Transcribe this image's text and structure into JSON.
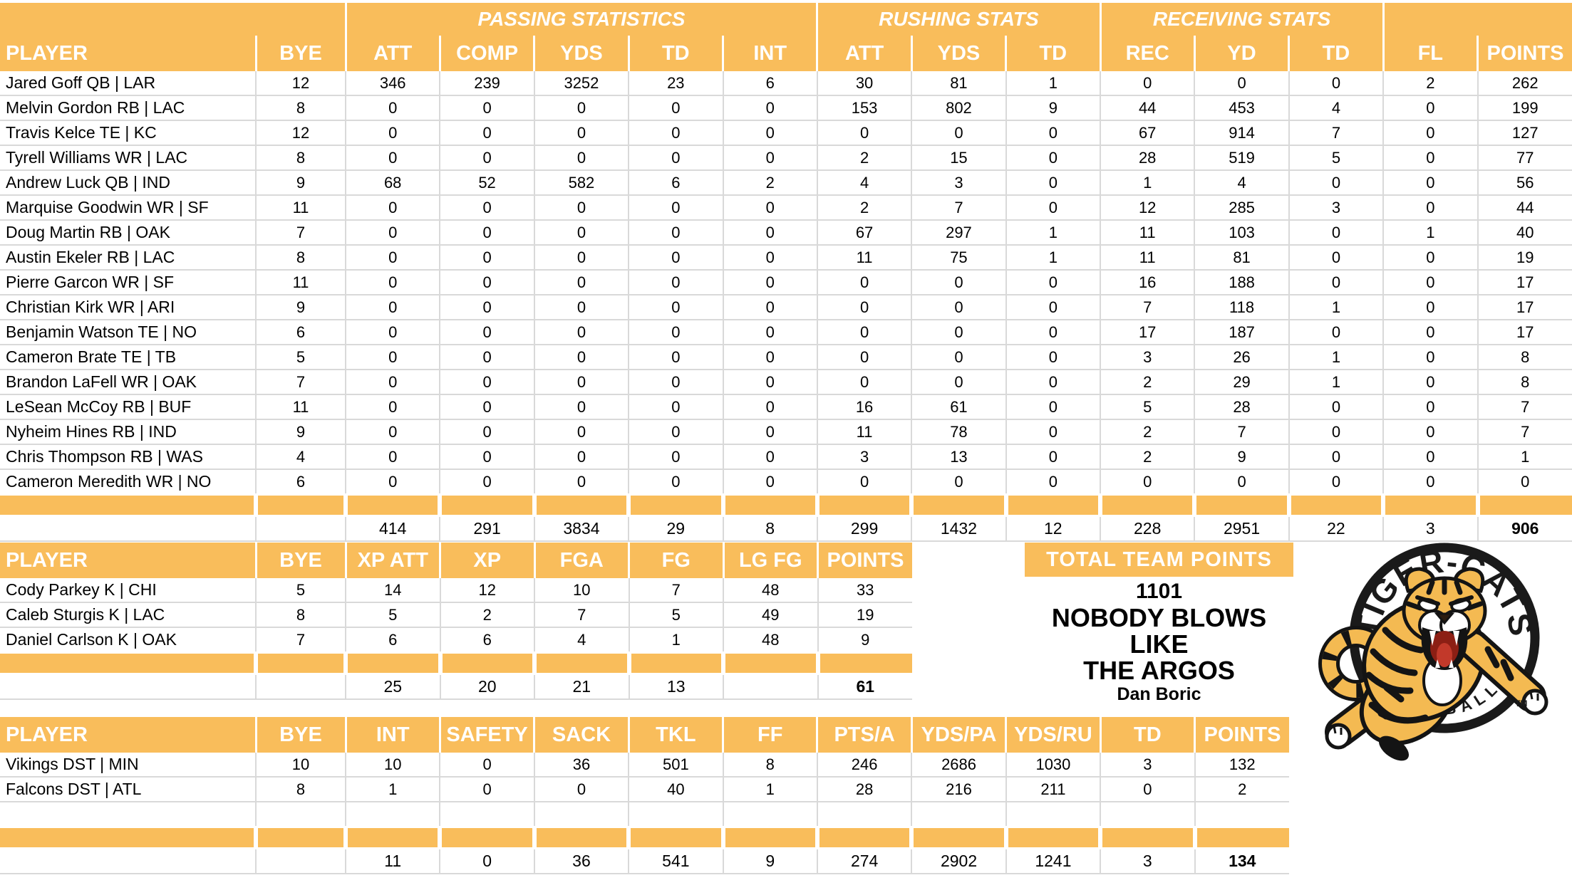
{
  "colors": {
    "header_orange": "#F9BD5B",
    "gridline": "#D9D9D9",
    "tiger_gold": "#F4BA52",
    "tiger_red": "#C2392A"
  },
  "main_table": {
    "group_headers": [
      {
        "label": "",
        "span": 2
      },
      {
        "label": "PASSING STATISTICS",
        "span": 5
      },
      {
        "label": "RUSHING STATS",
        "span": 3
      },
      {
        "label": "RECEIVING STATS",
        "span": 3
      },
      {
        "label": "",
        "span": 2
      }
    ],
    "columns": [
      "PLAYER",
      "BYE",
      "ATT",
      "COMP",
      "YDS",
      "TD",
      "INT",
      "ATT",
      "YDS",
      "TD",
      "REC",
      "YD",
      "TD",
      "FL",
      "POINTS"
    ],
    "rows": [
      [
        "Jared Goff QB | LAR",
        12,
        346,
        239,
        3252,
        23,
        6,
        30,
        81,
        1,
        0,
        0,
        0,
        2,
        262
      ],
      [
        "Melvin Gordon RB | LAC",
        8,
        0,
        0,
        0,
        0,
        0,
        153,
        802,
        9,
        44,
        453,
        4,
        0,
        199
      ],
      [
        "Travis Kelce TE | KC",
        12,
        0,
        0,
        0,
        0,
        0,
        0,
        0,
        0,
        67,
        914,
        7,
        0,
        127
      ],
      [
        "Tyrell Williams WR | LAC",
        8,
        0,
        0,
        0,
        0,
        0,
        2,
        15,
        0,
        28,
        519,
        5,
        0,
        77
      ],
      [
        "Andrew Luck QB | IND",
        9,
        68,
        52,
        582,
        6,
        2,
        4,
        3,
        0,
        1,
        4,
        0,
        0,
        56
      ],
      [
        "Marquise Goodwin WR | SF",
        11,
        0,
        0,
        0,
        0,
        0,
        2,
        7,
        0,
        12,
        285,
        3,
        0,
        44
      ],
      [
        "Doug Martin RB | OAK",
        7,
        0,
        0,
        0,
        0,
        0,
        67,
        297,
        1,
        11,
        103,
        0,
        1,
        40
      ],
      [
        "Austin Ekeler RB | LAC",
        8,
        0,
        0,
        0,
        0,
        0,
        11,
        75,
        1,
        11,
        81,
        0,
        0,
        19
      ],
      [
        "Pierre Garcon WR | SF",
        11,
        0,
        0,
        0,
        0,
        0,
        0,
        0,
        0,
        16,
        188,
        0,
        0,
        17
      ],
      [
        "Christian Kirk WR | ARI",
        9,
        0,
        0,
        0,
        0,
        0,
        0,
        0,
        0,
        7,
        118,
        1,
        0,
        17
      ],
      [
        "Benjamin Watson TE | NO",
        6,
        0,
        0,
        0,
        0,
        0,
        0,
        0,
        0,
        17,
        187,
        0,
        0,
        17
      ],
      [
        "Cameron Brate TE | TB",
        5,
        0,
        0,
        0,
        0,
        0,
        0,
        0,
        0,
        3,
        26,
        1,
        0,
        8
      ],
      [
        "Brandon LaFell WR | OAK",
        7,
        0,
        0,
        0,
        0,
        0,
        0,
        0,
        0,
        2,
        29,
        1,
        0,
        8
      ],
      [
        "LeSean McCoy RB | BUF",
        11,
        0,
        0,
        0,
        0,
        0,
        16,
        61,
        0,
        5,
        28,
        0,
        0,
        7
      ],
      [
        "Nyheim Hines RB | IND",
        9,
        0,
        0,
        0,
        0,
        0,
        11,
        78,
        0,
        2,
        7,
        0,
        0,
        7
      ],
      [
        "Chris Thompson RB | WAS",
        4,
        0,
        0,
        0,
        0,
        0,
        3,
        13,
        0,
        2,
        9,
        0,
        0,
        1
      ],
      [
        "Cameron Meredith WR | NO",
        6,
        0,
        0,
        0,
        0,
        0,
        0,
        0,
        0,
        0,
        0,
        0,
        0,
        0
      ]
    ],
    "totals": [
      "",
      "",
      414,
      291,
      3834,
      29,
      8,
      299,
      1432,
      12,
      228,
      2951,
      22,
      3,
      906
    ]
  },
  "kicker_table": {
    "columns": [
      "PLAYER",
      "BYE",
      "XP ATT",
      "XP",
      "FGA",
      "FG",
      "LG FG",
      "POINTS"
    ],
    "rows": [
      [
        "Cody Parkey K | CHI",
        5,
        14,
        12,
        10,
        7,
        48,
        33
      ],
      [
        "Caleb Sturgis K | LAC",
        8,
        5,
        2,
        7,
        5,
        49,
        19
      ],
      [
        "Daniel Carlson K | OAK",
        7,
        6,
        6,
        4,
        1,
        48,
        9
      ]
    ],
    "totals": [
      "",
      "",
      25,
      20,
      21,
      13,
      "",
      61
    ]
  },
  "dst_table": {
    "columns": [
      "PLAYER",
      "BYE",
      "INT",
      "SAFETY",
      "SACK",
      "TKL",
      "FF",
      "PTS/A",
      "YDS/PA",
      "YDS/RU",
      "TD",
      "POINTS"
    ],
    "rows": [
      [
        "Vikings DST | MIN",
        10,
        10,
        0,
        36,
        501,
        8,
        246,
        2686,
        1030,
        3,
        132
      ],
      [
        "Falcons DST | ATL",
        8,
        1,
        0,
        0,
        40,
        1,
        28,
        216,
        211,
        0,
        2
      ]
    ],
    "blank_row": true,
    "totals": [
      "",
      "",
      11,
      0,
      36,
      541,
      9,
      274,
      2902,
      1241,
      3,
      134
    ]
  },
  "team_points": {
    "header": "TOTAL TEAM POINTS",
    "total": "1101",
    "team_line1": "NOBODY BLOWS LIKE",
    "team_line2": "THE ARGOS",
    "owner": "Dan Boric"
  },
  "logo": {
    "top_text": "TIGER-CATS",
    "bottom_text": "FOOTBALL",
    "trademark": "TM"
  }
}
